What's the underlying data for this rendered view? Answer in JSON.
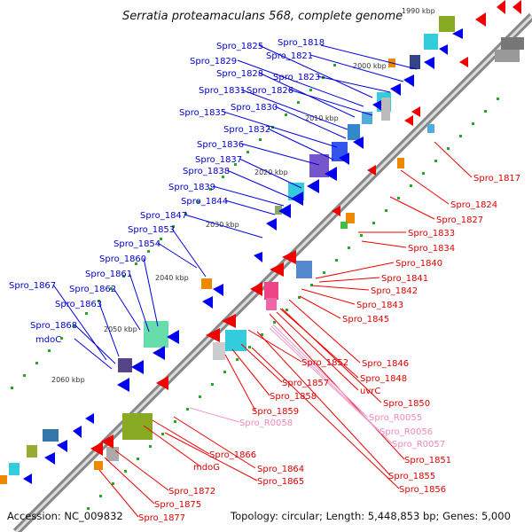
{
  "title": "Serratia proteamaculans 568, complete genome",
  "footer": {
    "accession": "Accession: NC_009832",
    "summary": "Topology: circular; Length: 5,448,853 bp; Genes: 5,000"
  },
  "colors": {
    "forward_label": "#0000cc",
    "reverse_label": "#dd0000",
    "rna_label": "#ee88bb",
    "backbone": "#999999"
  },
  "kbp_ticks": [
    "1990 kbp",
    "2000 kbp",
    "2010 kbp",
    "2020 kbp",
    "2030 kbp",
    "2040 kbp",
    "2050 kbp",
    "2060 kbp"
  ],
  "labels_forward": [
    "Spro_1825",
    "Spro_1818",
    "Spro_1829",
    "Spro_1821",
    "Spro_1828",
    "Spro_1823",
    "Spro_1831",
    "Spro_1826",
    "Spro_1830",
    "Spro_1835",
    "Spro_1832",
    "Spro_1836",
    "Spro_1837",
    "Spro_1838",
    "Spro_1839",
    "Spro_1844",
    "Spro_1847",
    "Spro_1853",
    "Spro_1854",
    "Spro_1860",
    "Spro_1861",
    "Spro_1867",
    "Spro_1862",
    "Spro_1863",
    "Spro_1868",
    "mdoC"
  ],
  "labels_reverse": [
    "Spro_1817",
    "Spro_1824",
    "Spro_1827",
    "Spro_1833",
    "Spro_1834",
    "Spro_1840",
    "Spro_1841",
    "Spro_1842",
    "Spro_1843",
    "Spro_1845",
    "Spro_1852",
    "Spro_1846",
    "Spro_1848",
    "Spro_1857",
    "uvrC",
    "Spro_1858",
    "Spro_1850",
    "Spro_1859",
    "Spro_1851",
    "Spro_1866",
    "mdoG",
    "Spro_1864",
    "Spro_1865",
    "Spro_1855",
    "Spro_1856",
    "Spro_1872",
    "Spro_1875",
    "Spro_1877"
  ],
  "labels_rna": [
    "Spro_R0055",
    "Spro_R0056",
    "Spro_R0057",
    "Spro_R0058"
  ]
}
